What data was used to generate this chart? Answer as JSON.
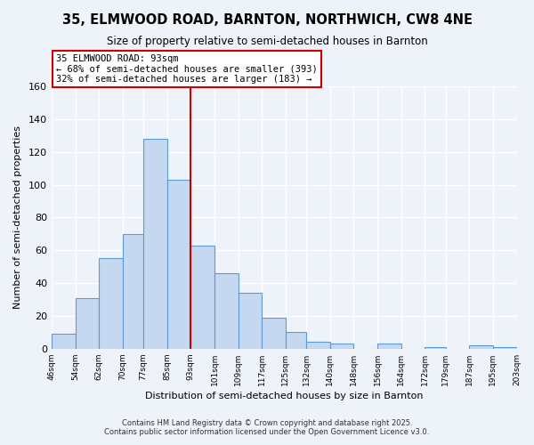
{
  "title": "35, ELMWOOD ROAD, BARNTON, NORTHWICH, CW8 4NE",
  "subtitle": "Size of property relative to semi-detached houses in Barnton",
  "xlabel": "Distribution of semi-detached houses by size in Barnton",
  "ylabel": "Number of semi-detached properties",
  "bar_values": [
    9,
    31,
    55,
    70,
    128,
    103,
    63,
    46,
    34,
    19,
    10,
    4,
    3,
    0,
    3,
    0,
    1,
    2,
    1
  ],
  "bin_lefts": [
    46,
    54,
    62,
    70,
    77,
    85,
    93,
    101,
    109,
    117,
    125,
    132,
    140,
    148,
    156,
    164,
    172,
    187,
    195
  ],
  "bin_rights": [
    54,
    62,
    70,
    77,
    85,
    93,
    101,
    109,
    117,
    125,
    132,
    140,
    148,
    156,
    164,
    172,
    179,
    195,
    203
  ],
  "tick_positions": [
    46,
    54,
    62,
    70,
    77,
    85,
    93,
    101,
    109,
    117,
    125,
    132,
    140,
    148,
    156,
    164,
    172,
    179,
    187,
    195,
    203
  ],
  "tick_labels": [
    "46sqm",
    "54sqm",
    "62sqm",
    "70sqm",
    "77sqm",
    "85sqm",
    "93sqm",
    "101sqm",
    "109sqm",
    "117sqm",
    "125sqm",
    "132sqm",
    "140sqm",
    "148sqm",
    "156sqm",
    "164sqm",
    "172sqm",
    "179sqm",
    "187sqm",
    "195sqm",
    "203sqm"
  ],
  "bar_color": "#c5d8f0",
  "bar_edge_color": "#5b9bd5",
  "vline_x": 93,
  "vline_color": "#cc0000",
  "annotation_title": "35 ELMWOOD ROAD: 93sqm",
  "annotation_line1": "← 68% of semi-detached houses are smaller (393)",
  "annotation_line2": "32% of semi-detached houses are larger (183) →",
  "annotation_box_color": "#ffffff",
  "annotation_box_edge": "#cc0000",
  "ylim": [
    0,
    160
  ],
  "yticks": [
    0,
    20,
    40,
    60,
    80,
    100,
    120,
    140,
    160
  ],
  "xlim": [
    46,
    203
  ],
  "footer1": "Contains HM Land Registry data © Crown copyright and database right 2025.",
  "footer2": "Contains public sector information licensed under the Open Government Licence v3.0.",
  "bg_color": "#eef2f9"
}
